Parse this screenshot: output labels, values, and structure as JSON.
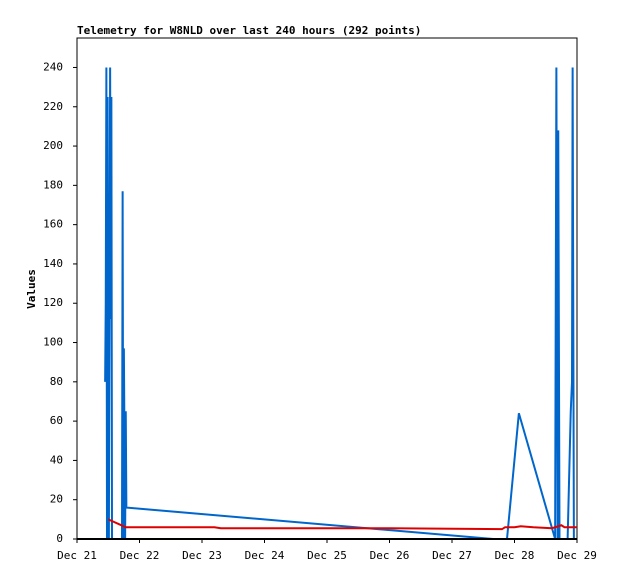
{
  "chart_data": {
    "type": "line",
    "title": "Telemetry for W8NLD over last 240 hours (292 points)",
    "y_label": "Values",
    "xlim": [
      0,
      8
    ],
    "xticks": [
      {
        "value": 0,
        "label": "Dec 21"
      },
      {
        "value": 1,
        "label": "Dec 22"
      },
      {
        "value": 2,
        "label": "Dec 23"
      },
      {
        "value": 3,
        "label": "Dec 24"
      },
      {
        "value": 4,
        "label": "Dec 25"
      },
      {
        "value": 5,
        "label": "Dec 26"
      },
      {
        "value": 6,
        "label": "Dec 27"
      },
      {
        "value": 7,
        "label": "Dec 28"
      },
      {
        "value": 8,
        "label": "Dec 29"
      }
    ],
    "ylim": [
      0,
      255
    ],
    "yticks": [
      0,
      20,
      40,
      60,
      80,
      100,
      120,
      140,
      160,
      180,
      200,
      220,
      240
    ],
    "series": [
      {
        "color": "#0066cc",
        "x": [
          0.45,
          0.46,
          0.47,
          0.48,
          0.49,
          0.5,
          0.51,
          0.53,
          0.54,
          0.55,
          0.56,
          0.72,
          0.73,
          0.74,
          0.75,
          0.77,
          0.78,
          0.79,
          6.66,
          6.88,
          7.07,
          7.65,
          7.67,
          7.69,
          7.7,
          7.72,
          7.85,
          7.9,
          7.92,
          7.93,
          7.95
        ],
        "values": [
          80,
          120,
          240,
          0,
          225,
          30,
          0,
          240,
          112,
          225,
          0,
          0,
          177,
          0,
          97,
          0,
          65,
          16,
          0,
          0,
          64,
          0,
          240,
          0,
          208,
          0,
          0,
          65,
          80,
          240,
          0
        ]
      },
      {
        "color": "#dd0000",
        "x": [
          0.5,
          0.78,
          2.2,
          2.3,
          5.0,
          6.8,
          6.85,
          7.0,
          7.1,
          7.3,
          7.6,
          7.75,
          7.8,
          8.0
        ],
        "values": [
          10,
          6,
          6,
          5.5,
          5.5,
          5,
          6,
          6,
          6.5,
          6,
          5.5,
          7,
          6,
          6
        ]
      }
    ]
  }
}
